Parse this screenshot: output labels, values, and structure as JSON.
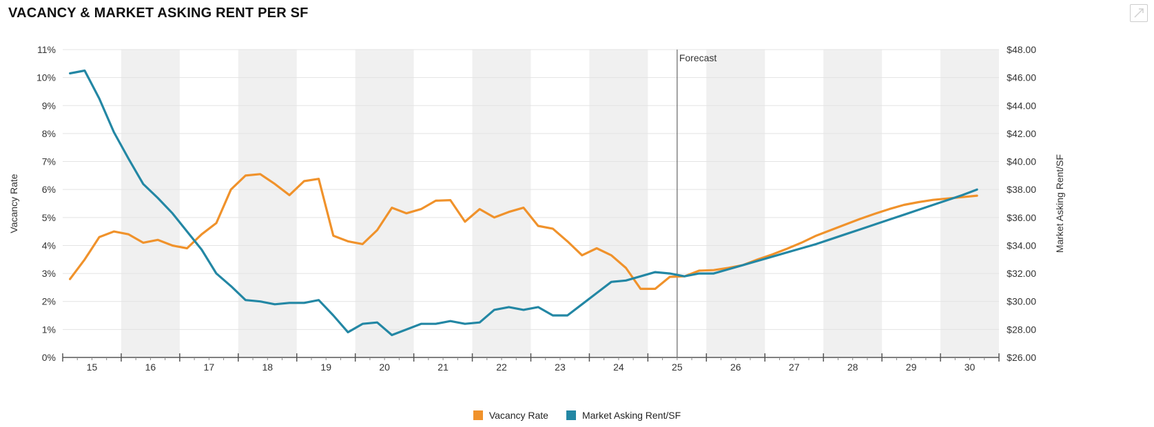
{
  "header": {
    "title": "VACANCY & MARKET ASKING RENT PER SF"
  },
  "colors": {
    "vacancy": "#f0922b",
    "rent": "#2387a4",
    "band": "#f0f0f0",
    "forecast_line": "#666666",
    "grid": "#e3e3e3"
  },
  "legend": {
    "vacancy_label": "Vacancy Rate",
    "rent_label": "Market Asking Rent/SF"
  },
  "chart_data": {
    "type": "line",
    "xlabel": "",
    "ylabel_left": "Vacancy Rate",
    "ylabel_right": "Market Asking Rent/SF",
    "forecast_label": "Forecast",
    "forecast_start": 2025.0,
    "x_range": [
      2014.5,
      2030.5
    ],
    "ylim_left": [
      0,
      11
    ],
    "ylim_right": [
      26,
      48
    ],
    "y_ticks_left": [
      "0%",
      "1%",
      "2%",
      "3%",
      "4%",
      "5%",
      "6%",
      "7%",
      "8%",
      "9%",
      "10%",
      "11%"
    ],
    "y_ticks_right": [
      "$26.00",
      "$28.00",
      "$30.00",
      "$32.00",
      "$34.00",
      "$36.00",
      "$38.00",
      "$40.00",
      "$42.00",
      "$44.00",
      "$46.00",
      "$48.00"
    ],
    "x_ticks": [
      "15",
      "16",
      "17",
      "18",
      "19",
      "20",
      "21",
      "22",
      "23",
      "24",
      "25",
      "26",
      "27",
      "28",
      "29",
      "30"
    ],
    "grid": true,
    "legend_position": "bottom",
    "series": [
      {
        "name": "Vacancy Rate",
        "axis": "left",
        "x": [
          2014.625,
          2014.875,
          2015.125,
          2015.375,
          2015.625,
          2015.875,
          2016.125,
          2016.375,
          2016.625,
          2016.875,
          2017.125,
          2017.375,
          2017.625,
          2017.875,
          2018.125,
          2018.375,
          2018.625,
          2018.875,
          2019.125,
          2019.375,
          2019.625,
          2019.875,
          2020.125,
          2020.375,
          2020.625,
          2020.875,
          2021.125,
          2021.375,
          2021.625,
          2021.875,
          2022.125,
          2022.375,
          2022.625,
          2022.875,
          2023.125,
          2023.375,
          2023.625,
          2023.875,
          2024.125,
          2024.375,
          2024.625,
          2024.875,
          2025.125,
          2025.375,
          2025.625,
          2025.875,
          2026.125,
          2026.375,
          2026.625,
          2026.875,
          2027.125,
          2027.375,
          2027.625,
          2027.875,
          2028.125,
          2028.375,
          2028.625,
          2028.875,
          2029.125,
          2029.375,
          2029.625,
          2029.875,
          2030.125
        ],
        "y": [
          2.8,
          3.5,
          4.3,
          4.5,
          4.4,
          4.1,
          4.2,
          4.0,
          3.9,
          4.4,
          4.8,
          6.0,
          6.5,
          6.55,
          6.2,
          5.8,
          6.3,
          6.38,
          4.35,
          4.15,
          4.05,
          4.55,
          5.35,
          5.15,
          5.3,
          5.6,
          5.62,
          4.85,
          5.3,
          5.0,
          5.2,
          5.35,
          4.7,
          4.6,
          4.15,
          3.65,
          3.9,
          3.65,
          3.2,
          2.45,
          2.45,
          2.88,
          2.9,
          3.1,
          3.12,
          3.2,
          3.3,
          3.5,
          3.68,
          3.88,
          4.1,
          4.35,
          4.55,
          4.75,
          4.95,
          5.13,
          5.3,
          5.45,
          5.55,
          5.63,
          5.68,
          5.73,
          5.78
        ]
      },
      {
        "name": "Market Asking Rent/SF",
        "axis": "right",
        "x": [
          2014.625,
          2014.875,
          2015.125,
          2015.375,
          2015.625,
          2015.875,
          2016.125,
          2016.375,
          2016.625,
          2016.875,
          2017.125,
          2017.375,
          2017.625,
          2017.875,
          2018.125,
          2018.375,
          2018.625,
          2018.875,
          2019.125,
          2019.375,
          2019.625,
          2019.875,
          2020.125,
          2020.375,
          2020.625,
          2020.875,
          2021.125,
          2021.375,
          2021.625,
          2021.875,
          2022.125,
          2022.375,
          2022.625,
          2022.875,
          2023.125,
          2023.375,
          2023.625,
          2023.875,
          2024.125,
          2024.375,
          2024.625,
          2024.875,
          2025.125,
          2025.375,
          2025.625,
          2025.875,
          2026.125,
          2026.375,
          2026.625,
          2026.875,
          2027.125,
          2027.375,
          2027.625,
          2027.875,
          2028.125,
          2028.375,
          2028.625,
          2028.875,
          2029.125,
          2029.375,
          2029.625,
          2029.875,
          2030.125
        ],
        "y": [
          46.3,
          46.5,
          44.5,
          42.1,
          40.2,
          38.4,
          37.4,
          36.3,
          35.0,
          33.7,
          32.0,
          31.1,
          30.1,
          30.0,
          29.8,
          29.9,
          29.9,
          30.1,
          29.0,
          27.8,
          28.4,
          28.5,
          27.6,
          28.0,
          28.4,
          28.4,
          28.6,
          28.4,
          28.5,
          29.4,
          29.6,
          29.4,
          29.6,
          29.0,
          29.0,
          29.8,
          30.6,
          31.4,
          31.5,
          31.8,
          32.1,
          32.0,
          31.8,
          32.0,
          32.0,
          32.3,
          32.6,
          32.9,
          33.2,
          33.5,
          33.8,
          34.1,
          34.45,
          34.8,
          35.15,
          35.5,
          35.85,
          36.2,
          36.55,
          36.9,
          37.25,
          37.6,
          38.0
        ]
      }
    ]
  }
}
